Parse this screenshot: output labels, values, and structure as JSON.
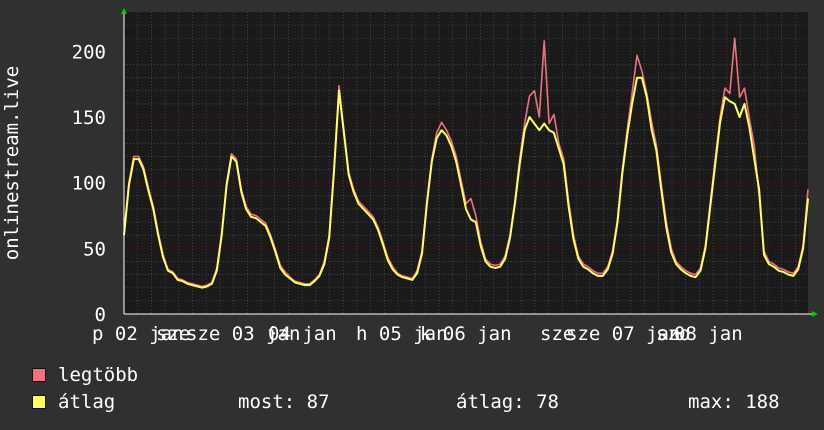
{
  "chart_data": {
    "type": "line",
    "ylabel": "onlinestream.live",
    "ylim": [
      0,
      230
    ],
    "y_ticks": [
      0,
      50,
      100,
      150,
      200
    ],
    "x_tick_labels": [
      "p 02 jan",
      "sze",
      "sze 03 jan",
      "04 jan",
      "h 05 jan",
      "k 06 jan",
      "sze",
      "sze 07 jan",
      "szo",
      "08 jan"
    ],
    "grid": true,
    "colors": {
      "max": "#f07080",
      "avg": "#ffff60",
      "background": "#303030",
      "plot_bg": "#1a1a1a",
      "grid": "#8b0000",
      "axis": "#ffffff"
    },
    "series": [
      {
        "name": "legtöbb",
        "values": [
          62,
          100,
          120,
          120,
          112,
          96,
          82,
          62,
          45,
          34,
          32,
          27,
          26,
          24,
          23,
          22,
          21,
          22,
          24,
          35,
          62,
          100,
          122,
          118,
          95,
          82,
          76,
          75,
          72,
          69,
          60,
          49,
          37,
          32,
          28,
          25,
          24,
          23,
          23,
          26,
          30,
          40,
          60,
          112,
          174,
          140,
          108,
          95,
          86,
          82,
          78,
          74,
          66,
          55,
          43,
          36,
          31,
          29,
          28,
          27,
          33,
          48,
          86,
          118,
          138,
          146,
          140,
          132,
          120,
          102,
          84,
          88,
          75,
          55,
          42,
          38,
          37,
          38,
          44,
          60,
          86,
          118,
          145,
          166,
          170,
          150,
          208,
          145,
          152,
          130,
          118,
          86,
          60,
          44,
          38,
          36,
          33,
          31,
          31,
          36,
          48,
          72,
          110,
          140,
          168,
          197,
          185,
          168,
          146,
          128,
          98,
          70,
          50,
          40,
          36,
          33,
          31,
          30,
          35,
          52,
          85,
          118,
          150,
          172,
          168,
          210,
          165,
          172,
          149,
          128,
          90,
          48,
          40,
          38,
          35,
          34,
          32,
          31,
          36,
          52,
          95
        ]
      },
      {
        "name": "átlag",
        "values": [
          60,
          98,
          118,
          118,
          110,
          94,
          80,
          60,
          43,
          33,
          31,
          26,
          25,
          23,
          22,
          21,
          20,
          21,
          23,
          33,
          60,
          98,
          120,
          116,
          93,
          80,
          74,
          73,
          70,
          67,
          58,
          47,
          35,
          30,
          27,
          24,
          23,
          22,
          22,
          25,
          29,
          38,
          58,
          110,
          170,
          138,
          106,
          93,
          84,
          80,
          76,
          72,
          64,
          53,
          41,
          34,
          30,
          28,
          27,
          26,
          31,
          46,
          84,
          116,
          134,
          140,
          136,
          128,
          116,
          98,
          80,
          72,
          70,
          52,
          40,
          36,
          35,
          36,
          42,
          58,
          84,
          114,
          140,
          150,
          145,
          140,
          145,
          140,
          138,
          126,
          114,
          82,
          57,
          42,
          36,
          34,
          31,
          29,
          29,
          34,
          46,
          70,
          107,
          136,
          160,
          180,
          180,
          165,
          140,
          124,
          94,
          66,
          47,
          38,
          34,
          31,
          29,
          28,
          33,
          50,
          82,
          114,
          146,
          165,
          162,
          160,
          150,
          160,
          142,
          118,
          95,
          45,
          38,
          36,
          33,
          32,
          30,
          29,
          34,
          50,
          88
        ]
      }
    ],
    "legend": [
      {
        "label": "legtöbb",
        "color": "#f07080"
      },
      {
        "label": "átlag",
        "color": "#ffff60"
      }
    ],
    "stats": {
      "now": "most: 87",
      "avg": "átlag: 78",
      "max": "max: 188"
    }
  }
}
